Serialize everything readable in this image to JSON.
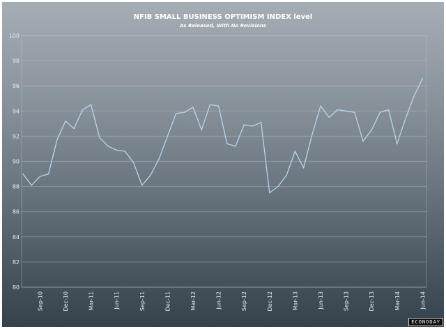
{
  "chart_data": {
    "type": "line",
    "title": "NFIB SMALL BUSINESS OPTIMISM INDEX level",
    "subtitle": "As Released, With No Revisions",
    "xlabel": "",
    "ylabel": "",
    "ylim": [
      80,
      100
    ],
    "yticks": [
      80,
      82,
      84,
      86,
      88,
      90,
      92,
      94,
      96,
      98,
      100
    ],
    "xtick_labels": [
      "Sep-10",
      "Dec-10",
      "Mar-11",
      "Jun-11",
      "Sep-11",
      "Dec-11",
      "Mar-12",
      "Jun-12",
      "Sep-12",
      "Dec-12",
      "Mar-13",
      "Jun-13",
      "Sep-13",
      "Dec-13",
      "Mar-14",
      "Jun-14"
    ],
    "xtick_month_index": [
      2,
      5,
      8,
      11,
      14,
      17,
      20,
      23,
      26,
      29,
      32,
      35,
      38,
      41,
      44,
      47
    ],
    "grid": true,
    "series": [
      {
        "name": "NFIB Small Business Optimism Index",
        "color": "#b9d6ee",
        "start": "Jul-10",
        "values": [
          89.0,
          88.1,
          88.8,
          89.0,
          91.7,
          93.2,
          92.6,
          94.1,
          94.5,
          91.9,
          91.2,
          90.9,
          90.8,
          89.9,
          88.1,
          88.9,
          90.2,
          92.0,
          93.8,
          93.9,
          94.3,
          92.5,
          94.5,
          94.4,
          91.4,
          91.2,
          92.9,
          92.8,
          93.1,
          87.5,
          88.0,
          88.9,
          90.8,
          89.5,
          92.1,
          94.4,
          93.5,
          94.1,
          94.0,
          93.9,
          91.6,
          92.5,
          93.9,
          94.1,
          91.4,
          93.4,
          95.2,
          96.6
        ]
      }
    ]
  },
  "logo": "ECONODAY"
}
